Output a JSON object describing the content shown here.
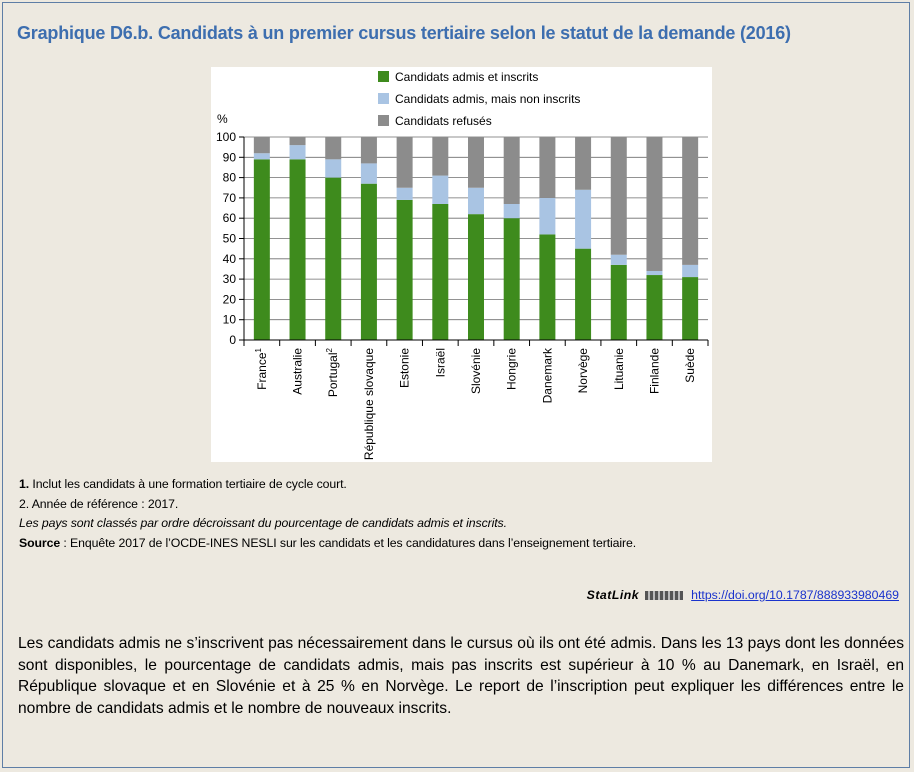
{
  "title": "Graphique D6.b. Candidats à un premier cursus tertiaire selon le statut de la demande (2016)",
  "notes": {
    "n1_num": "1.",
    "n1_text": " Inclut les candidats à une formation tertiaire de cycle court.",
    "n2_text": "2. Année de référence : 2017.",
    "order_text": "Les pays sont classés par ordre décroissant du pourcentage de candidats admis et inscrits.",
    "source_label": "Source",
    "source_text": " : Enquête 2017 de l’OCDE-INES NESLI sur les candidats et les candidatures dans l’enseignement tertiaire."
  },
  "statlink": {
    "brand": "StatLink",
    "url": "https://doi.org/10.1787/888933980469"
  },
  "paragraph": "Les candidats admis ne s’inscrivent pas nécessairement dans le cursus où ils ont été admis. Dans les 13 pays dont les données sont disponibles, le pourcentage de candidats admis, mais pas inscrits est supérieur à 10 % au Danemark, en Israël, en République slovaque et en Slovénie et à 25 % en Norvège. Le report de l’inscription peut expliquer les différences entre le nombre de candidats admis et le nombre de nouveaux inscrits.",
  "colors": {
    "title": "#3d6eaf",
    "admis_inscrits": "#3e8b1d",
    "admis_non_inscrits": "#a9c4e3",
    "refuses": "#8c8c8c"
  },
  "chart_data": {
    "type": "bar",
    "stacked": true,
    "ylabel": "%",
    "ylim": [
      0,
      100
    ],
    "yticks": [
      0,
      10,
      20,
      30,
      40,
      50,
      60,
      70,
      80,
      90,
      100
    ],
    "grid": true,
    "legend_position": "top",
    "categories": [
      "France",
      "Australie",
      "Portugal",
      "République slovaque",
      "Estonie",
      "Israël",
      "Slovénie",
      "Hongrie",
      "Danemark",
      "Norvège",
      "Lituanie",
      "Finlande",
      "Suède"
    ],
    "category_sup": [
      "1",
      "",
      "2",
      "",
      "",
      "",
      "",
      "",
      "",
      "",
      "",
      "",
      ""
    ],
    "series": [
      {
        "name": "Candidats admis et inscrits",
        "values": [
          89,
          89,
          80,
          77,
          69,
          67,
          62,
          60,
          52,
          45,
          37,
          32,
          31
        ]
      },
      {
        "name": "Candidats admis, mais non inscrits",
        "values": [
          3,
          7,
          9,
          10,
          6,
          14,
          13,
          7,
          18,
          29,
          5,
          2,
          6
        ]
      },
      {
        "name": "Candidats refusés",
        "values": [
          8,
          4,
          11,
          13,
          25,
          19,
          25,
          33,
          30,
          26,
          58,
          66,
          63
        ]
      }
    ]
  }
}
